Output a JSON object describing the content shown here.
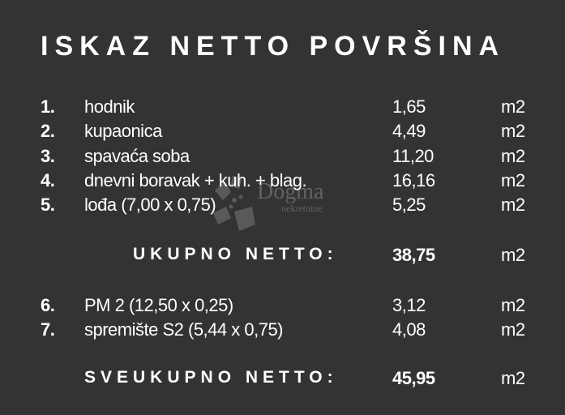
{
  "title": "ISKAZ NETTO POVRŠINA",
  "items": [
    {
      "num": "1.",
      "label": "hodnik",
      "value": "1,65",
      "unit": "m2"
    },
    {
      "num": "2.",
      "label": "kupaonica",
      "value": "4,49",
      "unit": "m2"
    },
    {
      "num": "3.",
      "label": "spavaća soba",
      "value": "11,20",
      "unit": "m2"
    },
    {
      "num": "4.",
      "label": "dnevni boravak + kuh. + blag.",
      "value": "16,16",
      "unit": "m2"
    },
    {
      "num": "5.",
      "label": "lođa (7,00 x 0,75)",
      "value": "5,25",
      "unit": "m2"
    }
  ],
  "subtotal": {
    "label": "UKUPNO NETTO:",
    "value": "38,75",
    "unit": "m2"
  },
  "extra_items": [
    {
      "num": "6.",
      "label": "PM 2 (12,50 x 0,25)",
      "value": "3,12",
      "unit": "m2"
    },
    {
      "num": "7.",
      "label": "spremište S2 (5,44 x 0,75)",
      "value": "4,08",
      "unit": "m2"
    }
  ],
  "grand_total": {
    "label": "SVEUKUPNO NETTO:",
    "value": "45,95",
    "unit": "m2"
  },
  "watermark": {
    "brand": "Dogma",
    "tagline": "nekretnine"
  }
}
